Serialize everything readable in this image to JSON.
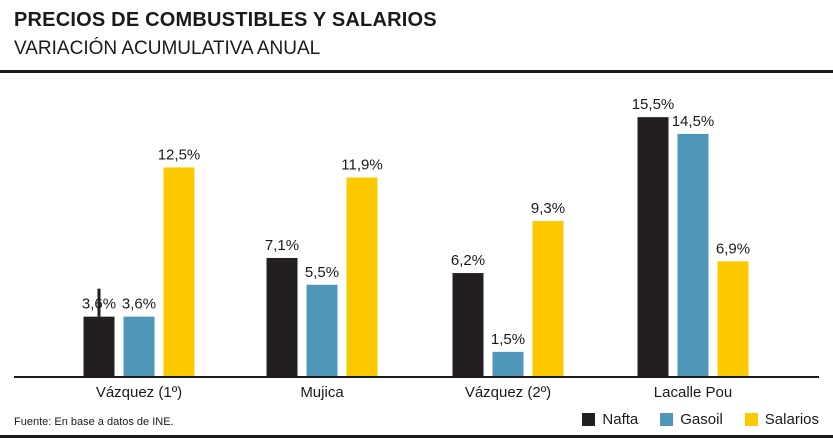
{
  "header": {
    "title": "PRECIOS DE COMBUSTIBLES Y SALARIOS",
    "subtitle": "VARIACIÓN ACUMULATIVA ANUAL"
  },
  "footer": {
    "source": "Fuente: En base a datos de INE."
  },
  "colors": {
    "nafta": "#231f20",
    "gasoil": "#4e97b8",
    "salarios": "#fcc800",
    "text": "#1a1a1a"
  },
  "chart_data": {
    "type": "bar",
    "title": "PRECIOS DE COMBUSTIBLES Y SALARIOS",
    "subtitle": "VARIACIÓN ACUMULATIVA ANUAL",
    "xlabel": "",
    "ylabel": "",
    "ylim": [
      0,
      17
    ],
    "grid": false,
    "legend_position": "bottom-right",
    "categories": [
      "Vázquez (1º)",
      "Mujica",
      "Vázquez (2º)",
      "Lacalle Pou"
    ],
    "series": [
      {
        "name": "Nafta",
        "color": "#231f20",
        "values": [
          3.6,
          7.1,
          6.2,
          15.5
        ],
        "labels": [
          "3,6%",
          "7,1%",
          "6,2%",
          "15,5%"
        ]
      },
      {
        "name": "Gasoil",
        "color": "#4e97b8",
        "values": [
          3.6,
          5.5,
          1.5,
          14.5
        ],
        "labels": [
          "3,6%",
          "5,5%",
          "1,5%",
          "14,5%"
        ]
      },
      {
        "name": "Salarios",
        "color": "#fcc800",
        "values": [
          12.5,
          11.9,
          9.3,
          6.9
        ],
        "labels": [
          "12,5%",
          "11,9%",
          "9,3%",
          "6,9%"
        ]
      }
    ]
  }
}
